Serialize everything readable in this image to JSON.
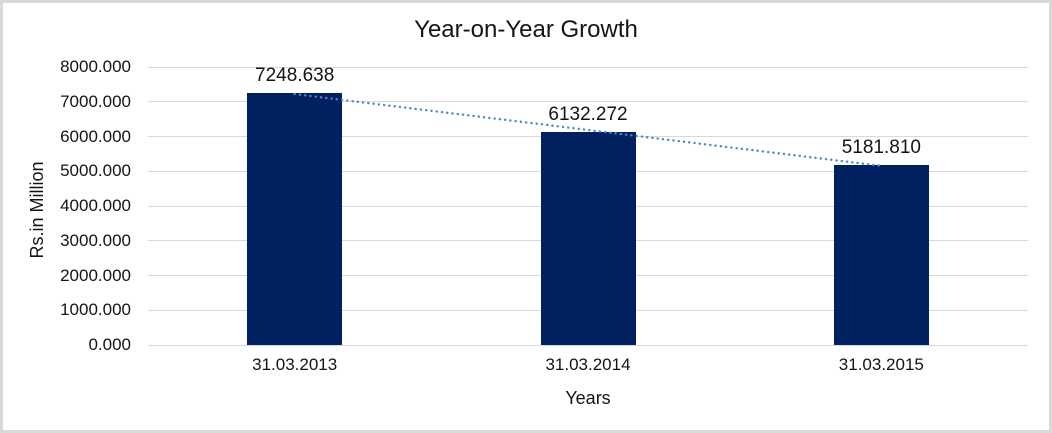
{
  "chart_data": {
    "type": "bar",
    "title": "Year-on-Year Growth",
    "categories": [
      "31.03.2013",
      "31.03.2014",
      "31.03.2015"
    ],
    "values": [
      7248.638,
      6132.272,
      5181.81
    ],
    "data_labels": [
      "7248.638",
      "6132.272",
      "5181.810"
    ],
    "xlabel": "Years",
    "ylabel": "Rs.in Million",
    "ylim": [
      0,
      8000
    ],
    "ytick_step": 1000,
    "ytick_decimals": 3,
    "grid": true,
    "legend": false,
    "bar_color": "#002060",
    "gridline_color": "#d9d9d9",
    "trendline": {
      "type": "linear",
      "style": "dotted",
      "color": "#4f86c6"
    }
  }
}
